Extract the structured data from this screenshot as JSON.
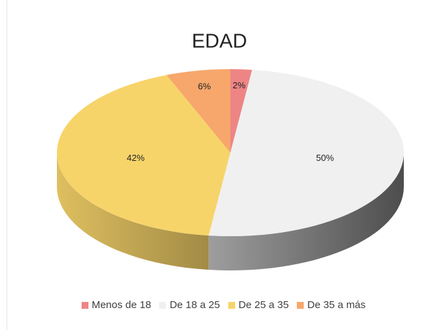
{
  "chart_data": {
    "type": "pie3d",
    "title": "EDAD",
    "categories": [
      "Menos de 18",
      "De 18 a 25",
      "De 25 a 35",
      "De 35 a más"
    ],
    "values": [
      2,
      50,
      42,
      6
    ],
    "value_labels": [
      "2%",
      "50%",
      "42%",
      "6%"
    ],
    "colors": [
      "#ee8585",
      "#f0f0f0",
      "#f7d46a",
      "#f7a76b"
    ],
    "legend": "bottom"
  }
}
